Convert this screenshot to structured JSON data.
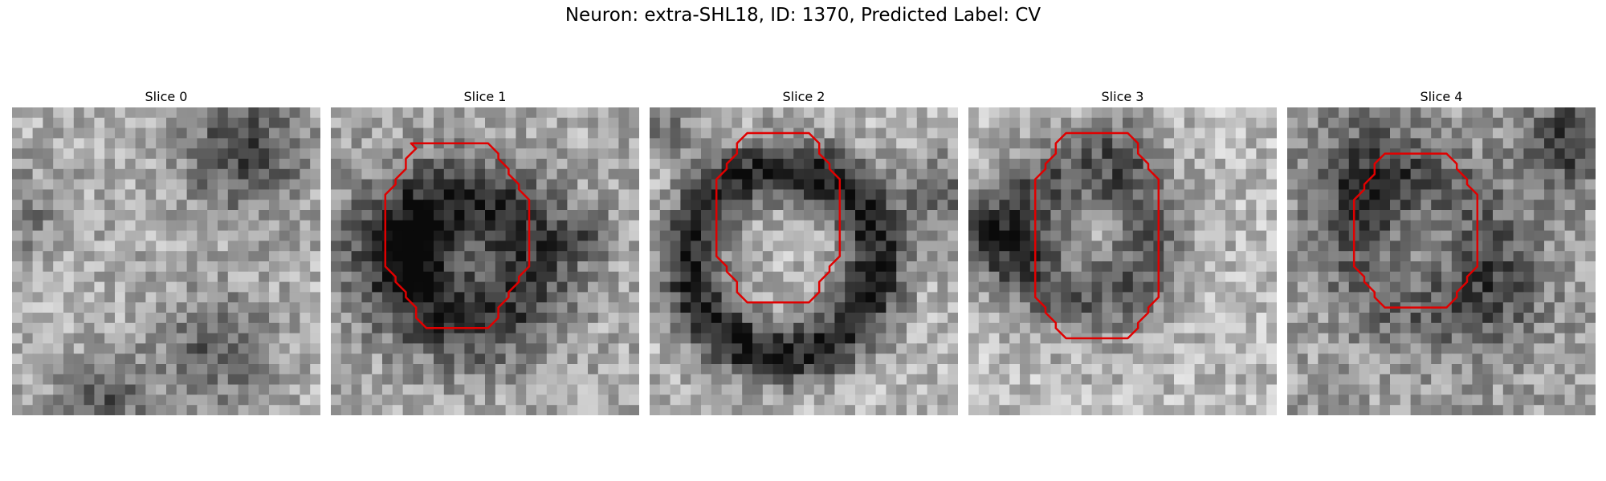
{
  "figure": {
    "title": "Neuron: extra-SHL18, ID: 1370, Predicted Label: CV",
    "outline_color": "#e00000",
    "colormap": "grayscale",
    "grid_size": 30
  },
  "slices": [
    {
      "title": "Slice 0",
      "has_outline": false,
      "seed": 11
    },
    {
      "title": "Slice 1",
      "has_outline": true,
      "seed": 23
    },
    {
      "title": "Slice 2",
      "has_outline": true,
      "seed": 37
    },
    {
      "title": "Slice 3",
      "has_outline": true,
      "seed": 51
    },
    {
      "title": "Slice 4",
      "has_outline": true,
      "seed": 67
    }
  ]
}
